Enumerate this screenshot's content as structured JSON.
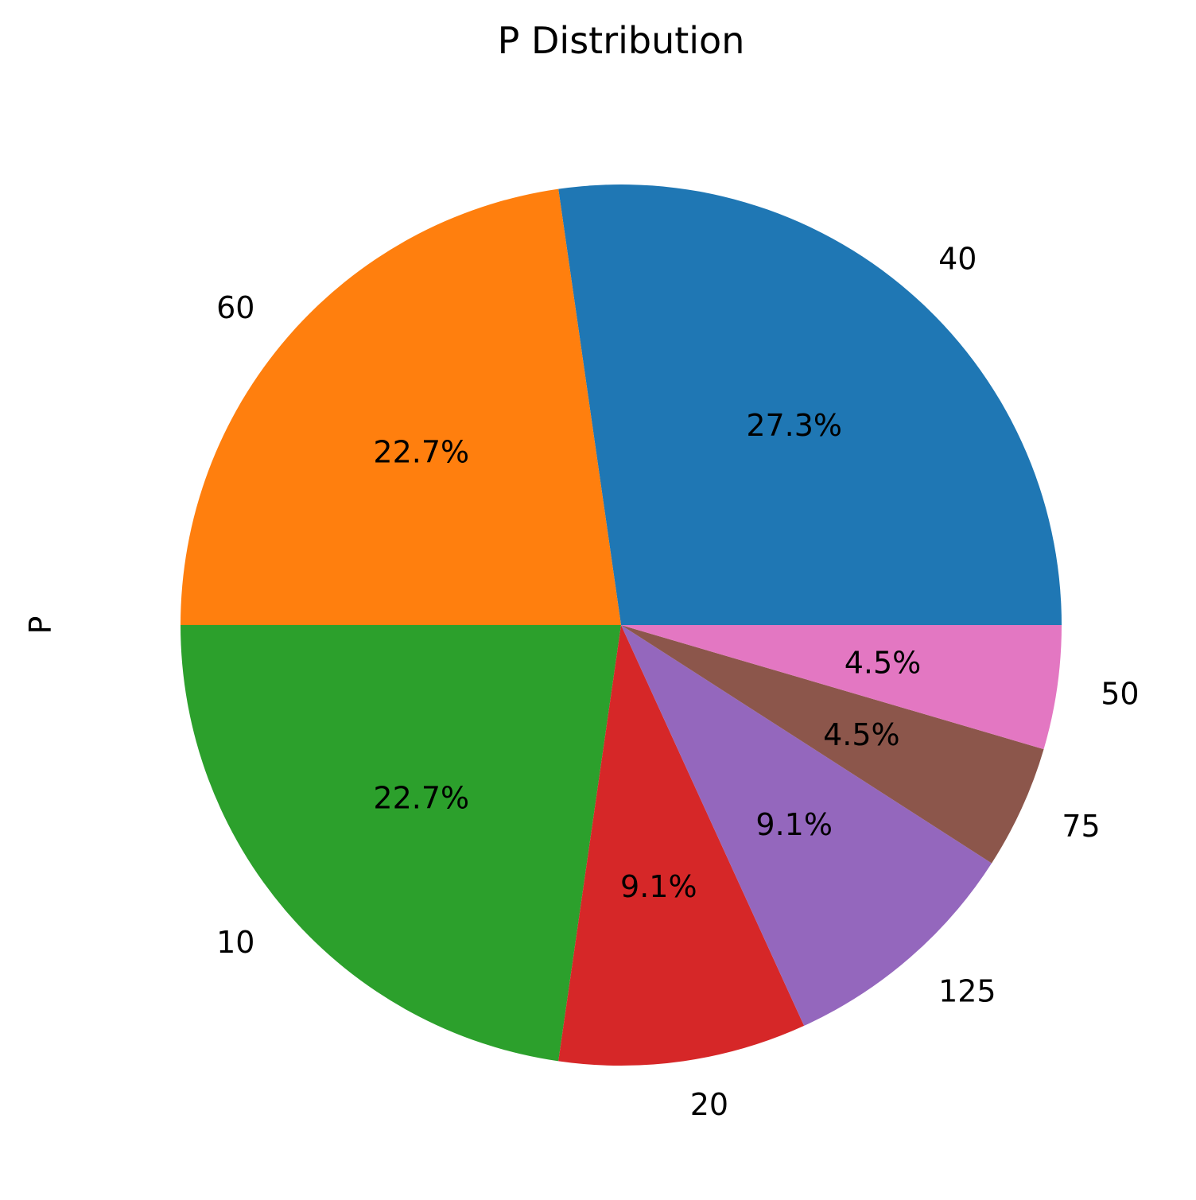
{
  "chart_data": {
    "type": "pie",
    "title": "P Distribution",
    "ylabel": "P",
    "categories": [
      "40",
      "60",
      "10",
      "20",
      "125",
      "75",
      "50"
    ],
    "values": [
      6,
      5,
      5,
      2,
      2,
      1,
      1
    ],
    "percent_labels": [
      "27.3%",
      "22.7%",
      "22.7%",
      "9.1%",
      "9.1%",
      "4.5%",
      "4.5%"
    ],
    "colors": [
      "#1f77b4",
      "#ff7f0e",
      "#2ca02c",
      "#d62728",
      "#9467bd",
      "#8c564b",
      "#e377c2"
    ],
    "start_angle_deg": 0,
    "direction": "counterclockwise",
    "legend": "none"
  }
}
